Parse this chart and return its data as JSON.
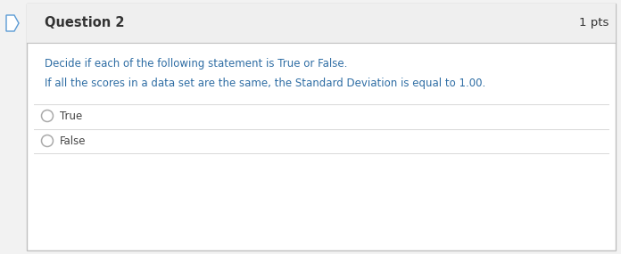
{
  "title": "Question 2",
  "pts": "1 pts",
  "instruction": "Decide if each of the following statement is True or False.",
  "question": "If all the scores in a data set are the same, the Standard Deviation is equal to 1.00.",
  "options": [
    "True",
    "False"
  ],
  "outer_bg": "#f2f2f2",
  "inner_bg": "#ffffff",
  "border_color": "#c0c0c0",
  "header_bg": "#efefef",
  "title_color": "#333333",
  "pts_color": "#333333",
  "instruction_color": "#2e6da4",
  "question_color": "#2e6da4",
  "option_color": "#444444",
  "divider_color": "#d8d8d8",
  "circle_color": "#aaaaaa",
  "title_fontsize": 10.5,
  "pts_fontsize": 9.5,
  "instruction_fontsize": 8.5,
  "question_fontsize": 8.5,
  "option_fontsize": 8.5,
  "arrow_color": "#5b9bd5",
  "arrow_bg": "#ffffff"
}
